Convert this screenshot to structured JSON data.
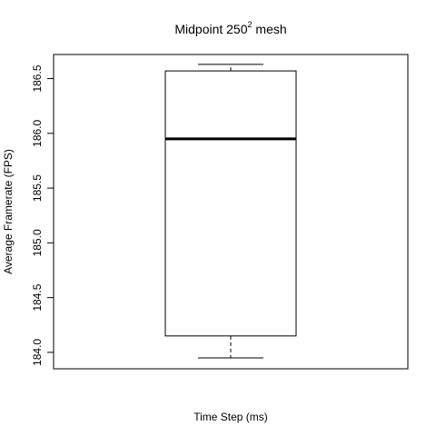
{
  "chart_data": {
    "type": "box",
    "title_parts": {
      "prefix": "Midpoint  250",
      "superscript": "2",
      "suffix": "  mesh"
    },
    "xlabel": "Time Step (ms)",
    "ylabel": "Average Framerate (FPS)",
    "y_ticks": [
      "184.0",
      "184.5",
      "185.0",
      "185.5",
      "186.0",
      "186.5"
    ],
    "y_tick_values": [
      184.0,
      184.5,
      185.0,
      185.5,
      186.0,
      186.5
    ],
    "ylim": [
      183.85,
      186.72
    ],
    "box": {
      "whisker_low": 183.95,
      "q1": 184.15,
      "median": 185.95,
      "q3": 186.57,
      "whisker_high": 186.63
    },
    "colors": {
      "stroke": "#000000",
      "background": "#ffffff"
    }
  }
}
